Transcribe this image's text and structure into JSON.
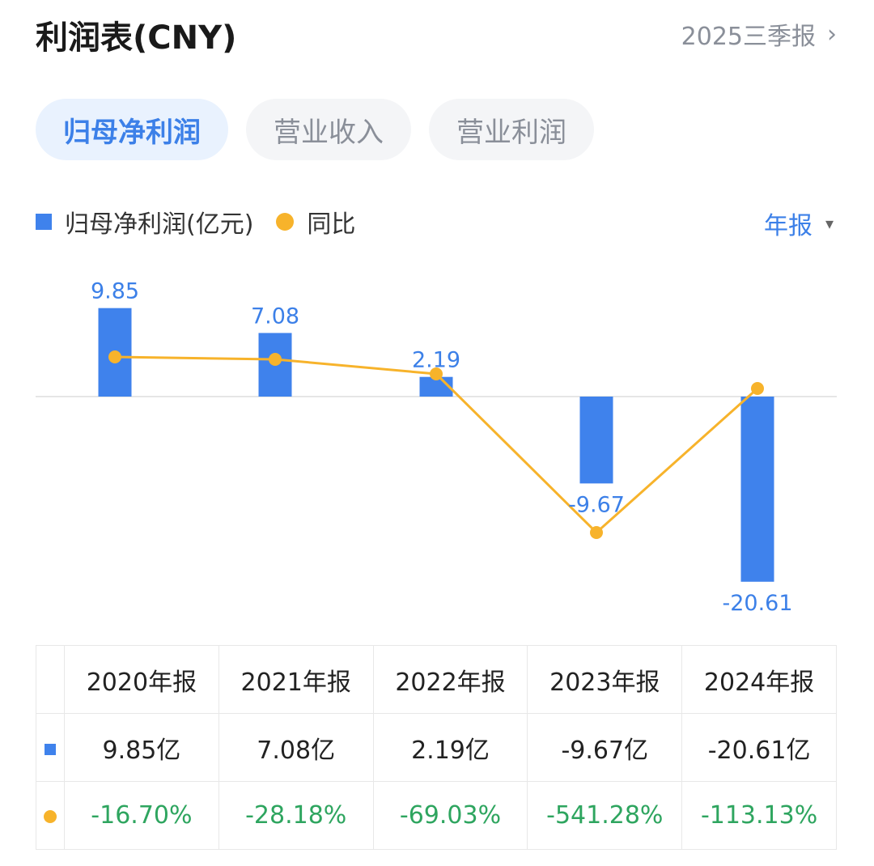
{
  "header": {
    "title": "利润表(CNY)",
    "period": "2025三季报",
    "chevron": "›"
  },
  "tabs": [
    {
      "label": "归母净利润",
      "active": true
    },
    {
      "label": "营业收入",
      "active": false
    },
    {
      "label": "营业利润",
      "active": false
    }
  ],
  "legend": {
    "bar_label": "归母净利润(亿元)",
    "line_label": "同比"
  },
  "frequency": {
    "label": "年报",
    "caret": "▾"
  },
  "colors": {
    "bar": "#3f82ec",
    "line": "#f7b32b",
    "yoy_text": "#2ea55f",
    "accent": "#3c80e8"
  },
  "chart_data": {
    "type": "bar",
    "categories": [
      "2020年报",
      "2021年报",
      "2022年报",
      "2023年报",
      "2024年报"
    ],
    "series": [
      {
        "name": "归母净利润(亿元)",
        "type": "bar",
        "values": [
          9.85,
          7.08,
          2.19,
          -9.67,
          -20.61
        ]
      },
      {
        "name": "同比",
        "type": "line",
        "values": [
          -16.7,
          -28.18,
          -69.03,
          -541.28,
          -113.13
        ]
      }
    ],
    "data_labels": [
      "9.85",
      "7.08",
      "2.19",
      "-9.67",
      "-20.61"
    ]
  },
  "table": {
    "columns": [
      "2020年报",
      "2021年报",
      "2022年报",
      "2023年报",
      "2024年报"
    ],
    "values": [
      "9.85亿",
      "7.08亿",
      "2.19亿",
      "-9.67亿",
      "-20.61亿"
    ],
    "yoy": [
      "-16.70%",
      "-28.18%",
      "-69.03%",
      "-541.28%",
      "-113.13%"
    ]
  }
}
